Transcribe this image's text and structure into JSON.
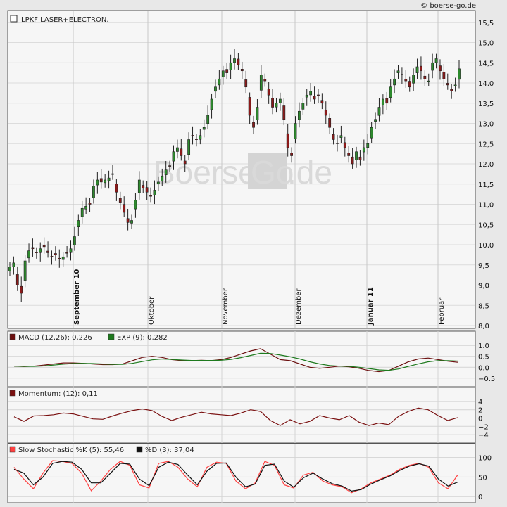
{
  "source": "© boerse-go.de",
  "watermark": {
    "left": "Boerse",
    "mid": "Go",
    "right": ".de"
  },
  "colors": {
    "up": "#2e8b2e",
    "down": "#8b1a1a",
    "macd": "#6b0f0f",
    "exp": "#1e7a1e",
    "momentum": "#7a1010",
    "stochK": "#ff4040",
    "stochD": "#111111",
    "panel": "#f6f6f6",
    "frame": "#e6e6e6"
  },
  "chart_data": [
    {
      "type": "candlestick",
      "title": "LPKF LASER+ELECTRON.",
      "ylim": [
        8.0,
        15.6
      ],
      "yticks": [
        "8,0",
        "8,5",
        "9,0",
        "9,5",
        "10,0",
        "10,5",
        "11,0",
        "11,5",
        "12,0",
        "12,5",
        "13,0",
        "13,5",
        "14,0",
        "14,5",
        "15,0",
        "15,5"
      ],
      "month_labels": [
        "September 10",
        "Oktober",
        "November",
        "Dezember",
        "Januar 11",
        "Februar"
      ],
      "bold_months": [
        "September 10",
        "Januar 11"
      ],
      "closes": [
        9.45,
        9.55,
        9.0,
        8.8,
        9.6,
        9.85,
        9.9,
        9.8,
        9.9,
        9.95,
        9.8,
        9.7,
        9.75,
        9.65,
        9.7,
        9.8,
        9.9,
        10.2,
        10.6,
        10.9,
        10.95,
        11.0,
        11.45,
        11.6,
        11.55,
        11.6,
        11.65,
        11.75,
        11.3,
        11.05,
        10.8,
        10.55,
        10.6,
        11.1,
        11.6,
        11.4,
        11.3,
        11.2,
        11.35,
        11.55,
        11.7,
        11.85,
        11.95,
        12.3,
        12.4,
        12.2,
        12.0,
        12.6,
        12.7,
        12.6,
        12.7,
        12.9,
        13.2,
        13.6,
        13.9,
        14.1,
        14.3,
        14.25,
        14.5,
        14.6,
        14.45,
        14.3,
        13.9,
        13.2,
        12.9,
        13.4,
        14.2,
        14.05,
        13.7,
        13.4,
        13.5,
        13.6,
        13.1,
        12.4,
        12.2,
        13.0,
        13.3,
        13.5,
        13.7,
        13.8,
        13.6,
        13.7,
        13.5,
        13.2,
        12.9,
        12.6,
        12.5,
        12.7,
        12.4,
        12.2,
        12.0,
        12.3,
        12.1,
        12.4,
        12.5,
        12.9,
        13.1,
        13.4,
        13.6,
        13.5,
        13.9,
        14.1,
        14.3,
        14.2,
        14.05,
        13.9,
        14.2,
        14.4,
        14.3,
        14.1,
        14.05,
        14.5,
        14.6,
        14.3,
        14.1,
        13.95,
        13.8,
        13.95,
        14.35
      ],
      "first_open": 9.35
    },
    {
      "type": "line",
      "legend": [
        "MACD (12,26): 0,226",
        "EXP (9): 0,282"
      ],
      "ylim": [
        -0.7,
        1.2
      ],
      "yticks": [
        "1.0",
        "0.5",
        "0.0",
        "−0.5"
      ],
      "ytick_values": [
        1.0,
        0.5,
        0.0,
        -0.5
      ],
      "series": [
        {
          "name": "MACD (12,26)",
          "values": [
            0.05,
            0.03,
            0.05,
            0.1,
            0.15,
            0.2,
            0.2,
            0.18,
            0.15,
            0.12,
            0.12,
            0.15,
            0.3,
            0.45,
            0.5,
            0.45,
            0.35,
            0.3,
            0.3,
            0.32,
            0.3,
            0.35,
            0.45,
            0.6,
            0.75,
            0.85,
            0.6,
            0.35,
            0.3,
            0.15,
            0.0,
            -0.05,
            0.0,
            0.05,
            0.02,
            -0.05,
            -0.15,
            -0.2,
            -0.15,
            0.05,
            0.25,
            0.38,
            0.42,
            0.35,
            0.28,
            0.226
          ]
        },
        {
          "name": "EXP (9)",
          "values": [
            0.05,
            0.04,
            0.04,
            0.06,
            0.1,
            0.14,
            0.17,
            0.18,
            0.17,
            0.15,
            0.13,
            0.13,
            0.18,
            0.26,
            0.34,
            0.38,
            0.36,
            0.33,
            0.31,
            0.31,
            0.31,
            0.32,
            0.36,
            0.44,
            0.54,
            0.64,
            0.63,
            0.56,
            0.48,
            0.38,
            0.25,
            0.15,
            0.08,
            0.05,
            0.04,
            0.0,
            -0.06,
            -0.12,
            -0.14,
            -0.08,
            0.04,
            0.15,
            0.25,
            0.3,
            0.3,
            0.282
          ]
        }
      ]
    },
    {
      "type": "line",
      "legend": [
        "Momentum: (12): 0,11"
      ],
      "ylim": [
        -5,
        5
      ],
      "yticks": [
        "4",
        "2",
        "0",
        "−2",
        "−4"
      ],
      "ytick_values": [
        4,
        2,
        0,
        -2,
        -4
      ],
      "series": [
        {
          "name": "Momentum: (12)",
          "values": [
            0.3,
            -0.8,
            0.5,
            0.6,
            0.8,
            1.2,
            1.0,
            0.4,
            -0.2,
            -0.3,
            0.5,
            1.2,
            1.8,
            2.2,
            1.8,
            0.4,
            -0.6,
            0.2,
            0.8,
            1.4,
            1.0,
            0.8,
            0.6,
            1.2,
            2.0,
            1.6,
            -0.6,
            -1.8,
            -0.4,
            -1.4,
            -0.8,
            0.6,
            0.0,
            -0.4,
            0.6,
            -1.0,
            -1.8,
            -1.2,
            -1.6,
            0.4,
            1.6,
            2.4,
            2.0,
            0.6,
            -0.6,
            0.11
          ]
        }
      ]
    },
    {
      "type": "line",
      "legend": [
        "Slow Stochastic %K (5): 55,46",
        "%D (3): 37,04"
      ],
      "ylim": [
        -5,
        110
      ],
      "yticks": [
        "100",
        "50",
        "0"
      ],
      "ytick_values": [
        100,
        50,
        0
      ],
      "series": [
        {
          "name": "Slow Stochastic %K (5)",
          "values": [
            75,
            45,
            20,
            60,
            92,
            90,
            85,
            60,
            15,
            40,
            70,
            90,
            80,
            30,
            22,
            85,
            90,
            75,
            45,
            25,
            75,
            88,
            85,
            40,
            20,
            35,
            90,
            80,
            30,
            22,
            55,
            62,
            40,
            30,
            25,
            10,
            20,
            35,
            45,
            55,
            70,
            80,
            85,
            75,
            35,
            20,
            55.46
          ]
        },
        {
          "name": "%D (3)",
          "values": [
            70,
            60,
            30,
            50,
            85,
            90,
            88,
            70,
            35,
            35,
            60,
            85,
            83,
            45,
            28,
            75,
            88,
            82,
            55,
            30,
            65,
            85,
            86,
            50,
            25,
            32,
            80,
            83,
            40,
            24,
            48,
            60,
            45,
            33,
            27,
            14,
            18,
            32,
            43,
            53,
            67,
            78,
            84,
            78,
            45,
            27,
            37.04
          ]
        }
      ]
    }
  ]
}
